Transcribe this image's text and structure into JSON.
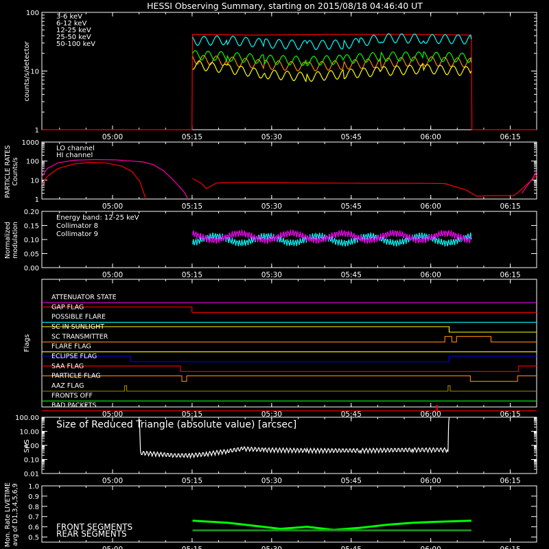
{
  "title": "HESSI Observing Summary, starting on 2015/08/18 04:46:40 UT",
  "time_ticks": [
    "05:00",
    "05:15",
    "05:30",
    "05:45",
    "06:00",
    "06:15"
  ],
  "chart_data": [
    {
      "type": "line",
      "ylabel": "counts/s/detector",
      "yscale": "log",
      "ylim": [
        1,
        100
      ],
      "ytick_labels": [
        "1",
        "10",
        "100"
      ],
      "series": [
        {
          "name": "3-6 keV",
          "color": "#ff0000",
          "segments": [
            [
              [
                0.0,
                1
              ],
              [
                28.3,
                1
              ],
              [
                28.4,
                42
              ],
              [
                40,
                41
              ],
              [
                55,
                42
              ],
              [
                70,
                42
              ],
              [
                81,
                41
              ],
              [
                81.1,
                1
              ],
              [
                93.3,
                1
              ]
            ]
          ]
        },
        {
          "name": "6-12 keV",
          "color": "#ff8800",
          "segments": [
            [
              [
                28.4,
                16
              ],
              [
                35,
                15
              ],
              [
                42,
                13
              ],
              [
                50,
                12
              ],
              [
                57,
                13
              ],
              [
                64,
                14
              ],
              [
                72,
                15
              ],
              [
                81,
                14
              ]
            ]
          ]
        },
        {
          "name": "12-25 keV",
          "color": "#ffff00",
          "segments": [
            [
              [
                28.4,
                13
              ],
              [
                35,
                11
              ],
              [
                42,
                9
              ],
              [
                50,
                8
              ],
              [
                57,
                9
              ],
              [
                64,
                10
              ],
              [
                72,
                11
              ],
              [
                81,
                10
              ]
            ]
          ]
        },
        {
          "name": "25-50 keV",
          "color": "#00ff00",
          "segments": [
            [
              [
                28.4,
                19
              ],
              [
                35,
                18
              ],
              [
                42,
                16
              ],
              [
                50,
                15
              ],
              [
                57,
                16
              ],
              [
                64,
                18
              ],
              [
                72,
                18
              ],
              [
                81,
                17
              ]
            ]
          ]
        },
        {
          "name": "50-100 keV",
          "color": "#00ffff",
          "segments": [
            [
              [
                28.4,
                33
              ],
              [
                35,
                34
              ],
              [
                42,
                30
              ],
              [
                50,
                28
              ],
              [
                57,
                29
              ],
              [
                60,
                31
              ],
              [
                64,
                37
              ],
              [
                72,
                36
              ],
              [
                81,
                35
              ]
            ]
          ]
        }
      ]
    },
    {
      "type": "line",
      "ylabel": "PARTICLE RATES Counts/s",
      "yscale": "log",
      "ylim": [
        1,
        1000
      ],
      "ytick_labels": [
        "1",
        "10",
        "100",
        "1000"
      ],
      "series": [
        {
          "name": "LO channel",
          "color": "#ff0000",
          "segments": [
            [
              [
                0.0,
                6
              ],
              [
                1,
                15
              ],
              [
                3,
                40
              ],
              [
                6,
                70
              ],
              [
                9,
                85
              ],
              [
                12,
                80
              ],
              [
                15,
                55
              ],
              [
                17,
                28
              ],
              [
                18.5,
                8
              ],
              [
                19.6,
                1
              ]
            ],
            [
              [
                28.4,
                12
              ],
              [
                30,
                7
              ],
              [
                31,
                3.5
              ],
              [
                32,
                5
              ],
              [
                33,
                7
              ],
              [
                38,
                7.5
              ],
              [
                50,
                7
              ],
              [
                60,
                6.8
              ],
              [
                70,
                6.8
              ],
              [
                76,
                6.5
              ],
              [
                80,
                3
              ],
              [
                82,
                1.4
              ],
              [
                84,
                1.5
              ],
              [
                89,
                1.5
              ],
              [
                90,
                2.5
              ],
              [
                92,
                8
              ],
              [
                93.3,
                18
              ]
            ]
          ]
        },
        {
          "name": "HI channel",
          "color": "#ff00aa",
          "segments": [
            [
              [
                0.0,
                15
              ],
              [
                1,
                40
              ],
              [
                3,
                80
              ],
              [
                6,
                110
              ],
              [
                10,
                120
              ],
              [
                14,
                115
              ],
              [
                17,
                100
              ],
              [
                19,
                90
              ],
              [
                21,
                65
              ],
              [
                23,
                30
              ],
              [
                24.5,
                12
              ],
              [
                25.5,
                6
              ],
              [
                26.5,
                3
              ],
              [
                27,
                2
              ],
              [
                27.5,
                1
              ]
            ],
            [
              [
                90.5,
                2
              ],
              [
                91.5,
                5
              ],
              [
                92.5,
                12
              ],
              [
                93.3,
                28
              ]
            ]
          ]
        }
      ]
    },
    {
      "type": "line",
      "ylabel": "Normalized modulation",
      "ylim": [
        0,
        0.2
      ],
      "ytick_labels": [
        "0.00",
        "0.05",
        "0.10",
        "0.15",
        "0.20"
      ],
      "annotation": "Energy band: 12-25 keV",
      "series": [
        {
          "name": "Collimator 8",
          "color": "#00ffff",
          "segments": [
            [
              [
                28.4,
                0.1
              ],
              [
                81,
                0.1
              ]
            ]
          ]
        },
        {
          "name": "Collimator 9",
          "color": "#ff00ff",
          "segments": [
            [
              [
                28.4,
                0.11
              ],
              [
                81,
                0.11
              ]
            ]
          ]
        }
      ]
    },
    {
      "type": "line",
      "ylabel": "Flags",
      "flags": [
        {
          "name": "ATTENUATOR STATE",
          "color": "#ff00ff",
          "steps": [
            [
              0.0,
              0
            ]
          ]
        },
        {
          "name": "GAP FLAG",
          "color": "#ff0000",
          "steps": [
            [
              0.0,
              1
            ],
            [
              28.3,
              0
            ],
            [
              93.3,
              0
            ]
          ]
        },
        {
          "name": "POSSIBLE FLARE",
          "color": "#00ffff",
          "steps": [
            [
              0.0,
              0
            ]
          ]
        },
        {
          "name": "SC IN SUNLIGHT",
          "color": "#ffff00",
          "steps": [
            [
              0.0,
              1
            ],
            [
              76.8,
              0
            ]
          ]
        },
        {
          "name": "SC TRANSMITTER",
          "color": "#ff8800",
          "steps": [
            [
              0.0,
              0
            ],
            [
              76.0,
              1
            ],
            [
              77.3,
              0
            ],
            [
              78.2,
              1
            ],
            [
              84.7,
              0
            ]
          ]
        },
        {
          "name": "FLARE FLAG",
          "color": "#ffff00",
          "steps": [
            [
              0.0,
              0
            ]
          ]
        },
        {
          "name": "ECLIPSE FLAG",
          "color": "#0000ff",
          "steps": [
            [
              0.0,
              1
            ],
            [
              16.7,
              0
            ],
            [
              76.8,
              1
            ]
          ]
        },
        {
          "name": "SAA FLAG",
          "color": "#ff0000",
          "steps": [
            [
              0.0,
              1
            ],
            [
              26.1,
              0
            ],
            [
              89.9,
              1
            ]
          ]
        },
        {
          "name": "PARTICLE FLAG",
          "color": "#ff8800",
          "steps": [
            [
              0.0,
              1
            ],
            [
              26.4,
              0
            ],
            [
              27.3,
              1
            ],
            [
              80.8,
              0
            ],
            [
              89.7,
              1
            ]
          ]
        },
        {
          "name": "AAZ FLAG",
          "color": "#aa8800",
          "steps": [
            [
              0.0,
              0
            ],
            [
              15.6,
              1
            ],
            [
              16.0,
              0
            ],
            [
              76.6,
              1
            ],
            [
              77.0,
              0
            ]
          ]
        },
        {
          "name": "FRONTS OFF",
          "color": "#00ff00",
          "steps": [
            [
              0.0,
              0
            ]
          ]
        },
        {
          "name": "BAD PACKETS",
          "color": "#ff0000",
          "steps": [
            [
              0.0,
              0
            ],
            [
              74.4,
              1
            ],
            [
              74.6,
              0
            ]
          ]
        }
      ]
    },
    {
      "type": "line",
      "ylabel": "SAS",
      "yscale": "log",
      "ylim": [
        0.01,
        100
      ],
      "ytick_labels": [
        "0.01",
        "0.10",
        "1.00",
        "10.00",
        "100.00"
      ],
      "annotation": "Size of Reduced Triangle (absolute value) [arcsec]",
      "series": [
        {
          "name": "",
          "color": "#ffffff",
          "segments": [
            [
              [
                18.2,
                100
              ],
              [
                18.6,
                0.3
              ],
              [
                25,
                0.2
              ],
              [
                28,
                0.2
              ],
              [
                31,
                0.25
              ],
              [
                35,
                0.4
              ],
              [
                38,
                0.6
              ],
              [
                42,
                0.5
              ],
              [
                50,
                0.45
              ],
              [
                60,
                0.45
              ],
              [
                70,
                0.5
              ],
              [
                76.6,
                0.5
              ],
              [
                76.8,
                100
              ]
            ]
          ]
        }
      ]
    },
    {
      "type": "line",
      "ylabel": "Mon. Rate LIVETIME avg of D1,3,4,5,6,9",
      "ylim": [
        0.45,
        1.0
      ],
      "ytick_labels": [
        "0.5",
        "0.6",
        "0.7",
        "0.8",
        "0.9",
        "1.0"
      ],
      "series": [
        {
          "name": "FRONT SEGMENTS",
          "color": "#00ff00",
          "segments": [
            [
              [
                28.4,
                0.66
              ],
              [
                35,
                0.64
              ],
              [
                40,
                0.61
              ],
              [
                45,
                0.58
              ],
              [
                50,
                0.6
              ],
              [
                55,
                0.57
              ],
              [
                60,
                0.59
              ],
              [
                65,
                0.62
              ],
              [
                70,
                0.64
              ],
              [
                75,
                0.65
              ],
              [
                81,
                0.66
              ]
            ]
          ]
        },
        {
          "name": "REAR SEGMENTS",
          "color": "#228822",
          "segments": [
            [
              [
                28.4,
                0.565
              ],
              [
                81,
                0.565
              ]
            ]
          ]
        }
      ]
    }
  ]
}
